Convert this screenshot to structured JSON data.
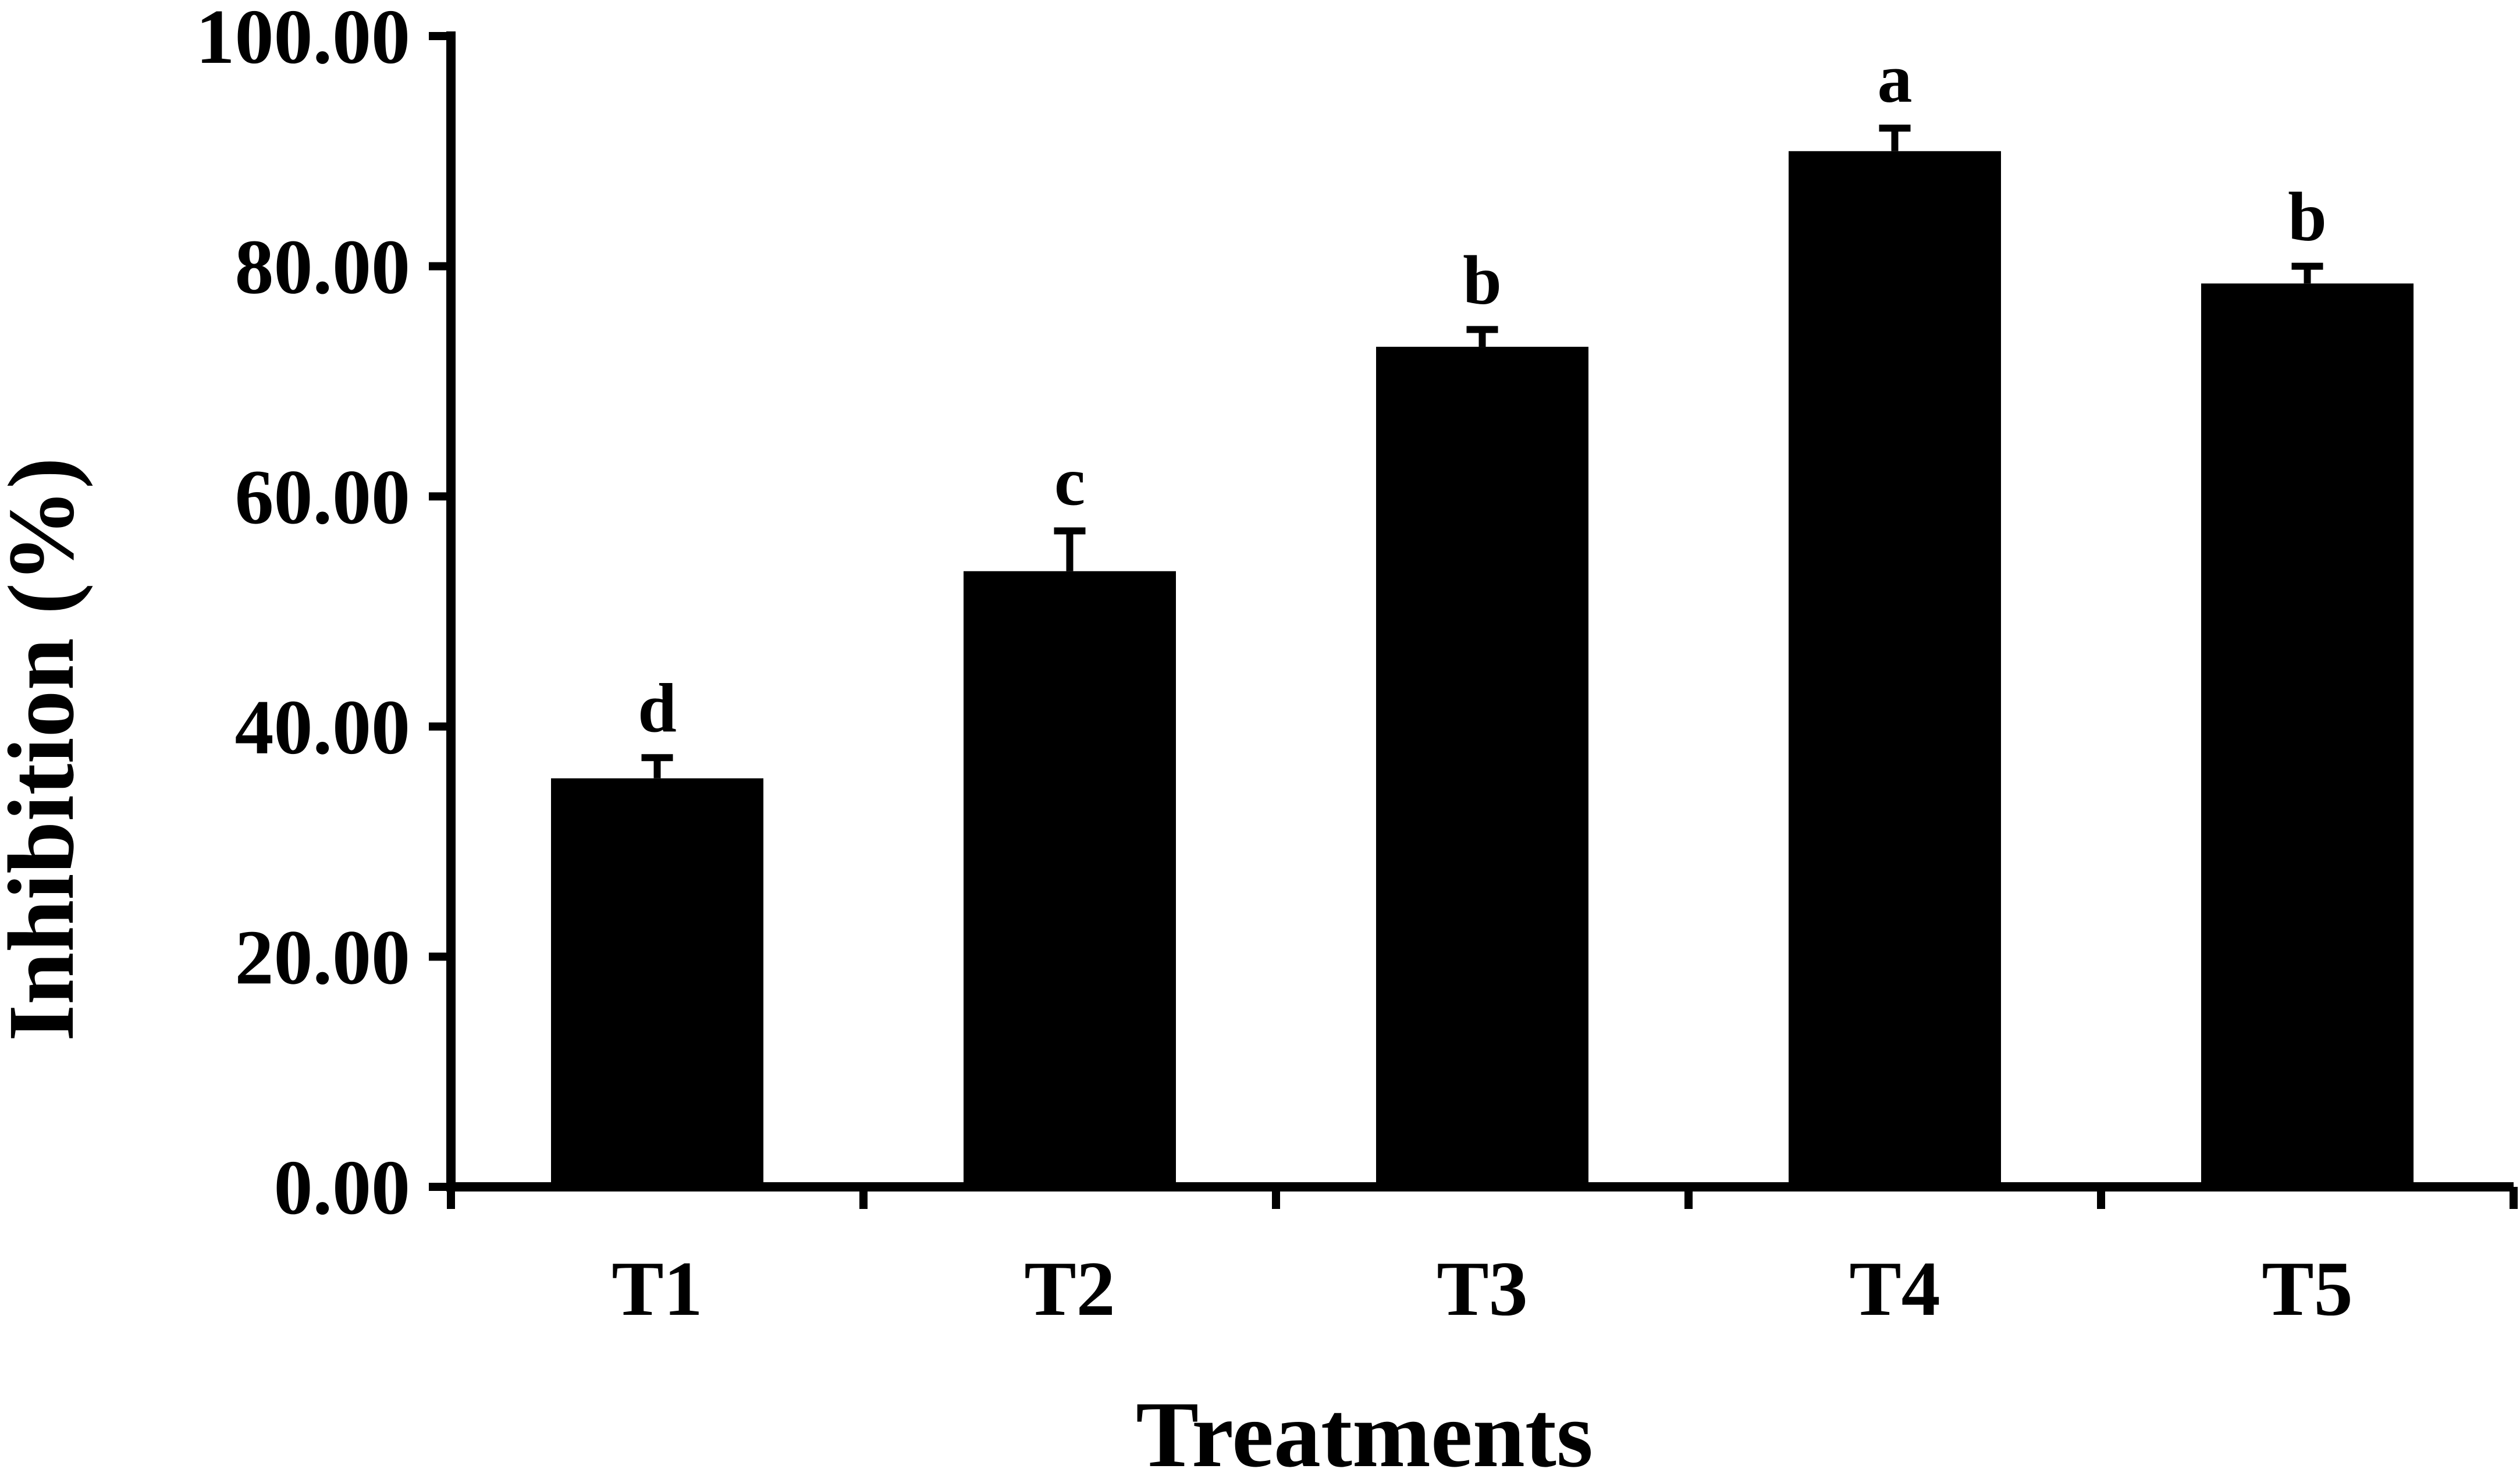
{
  "chart_data": {
    "type": "bar",
    "categories": [
      "T1",
      "T2",
      "T3",
      "T4",
      "T5"
    ],
    "series": [
      {
        "values": [
          35.5,
          53.5,
          73.0,
          90.0,
          78.5
        ],
        "error": [
          1.8,
          3.5,
          1.5,
          2.0,
          1.5
        ],
        "significance_letters": [
          "d",
          "c",
          "b",
          "a",
          "b"
        ]
      }
    ],
    "title": "",
    "xlabel": "Treatments",
    "ylabel": "Inhibition (%)",
    "ylim": [
      0,
      100
    ],
    "yticks": [
      "0.00",
      "20.00",
      "40.00",
      "60.00",
      "80.00",
      "100.00"
    ],
    "grid": false,
    "legend": "none",
    "bar_color": "#000000"
  }
}
